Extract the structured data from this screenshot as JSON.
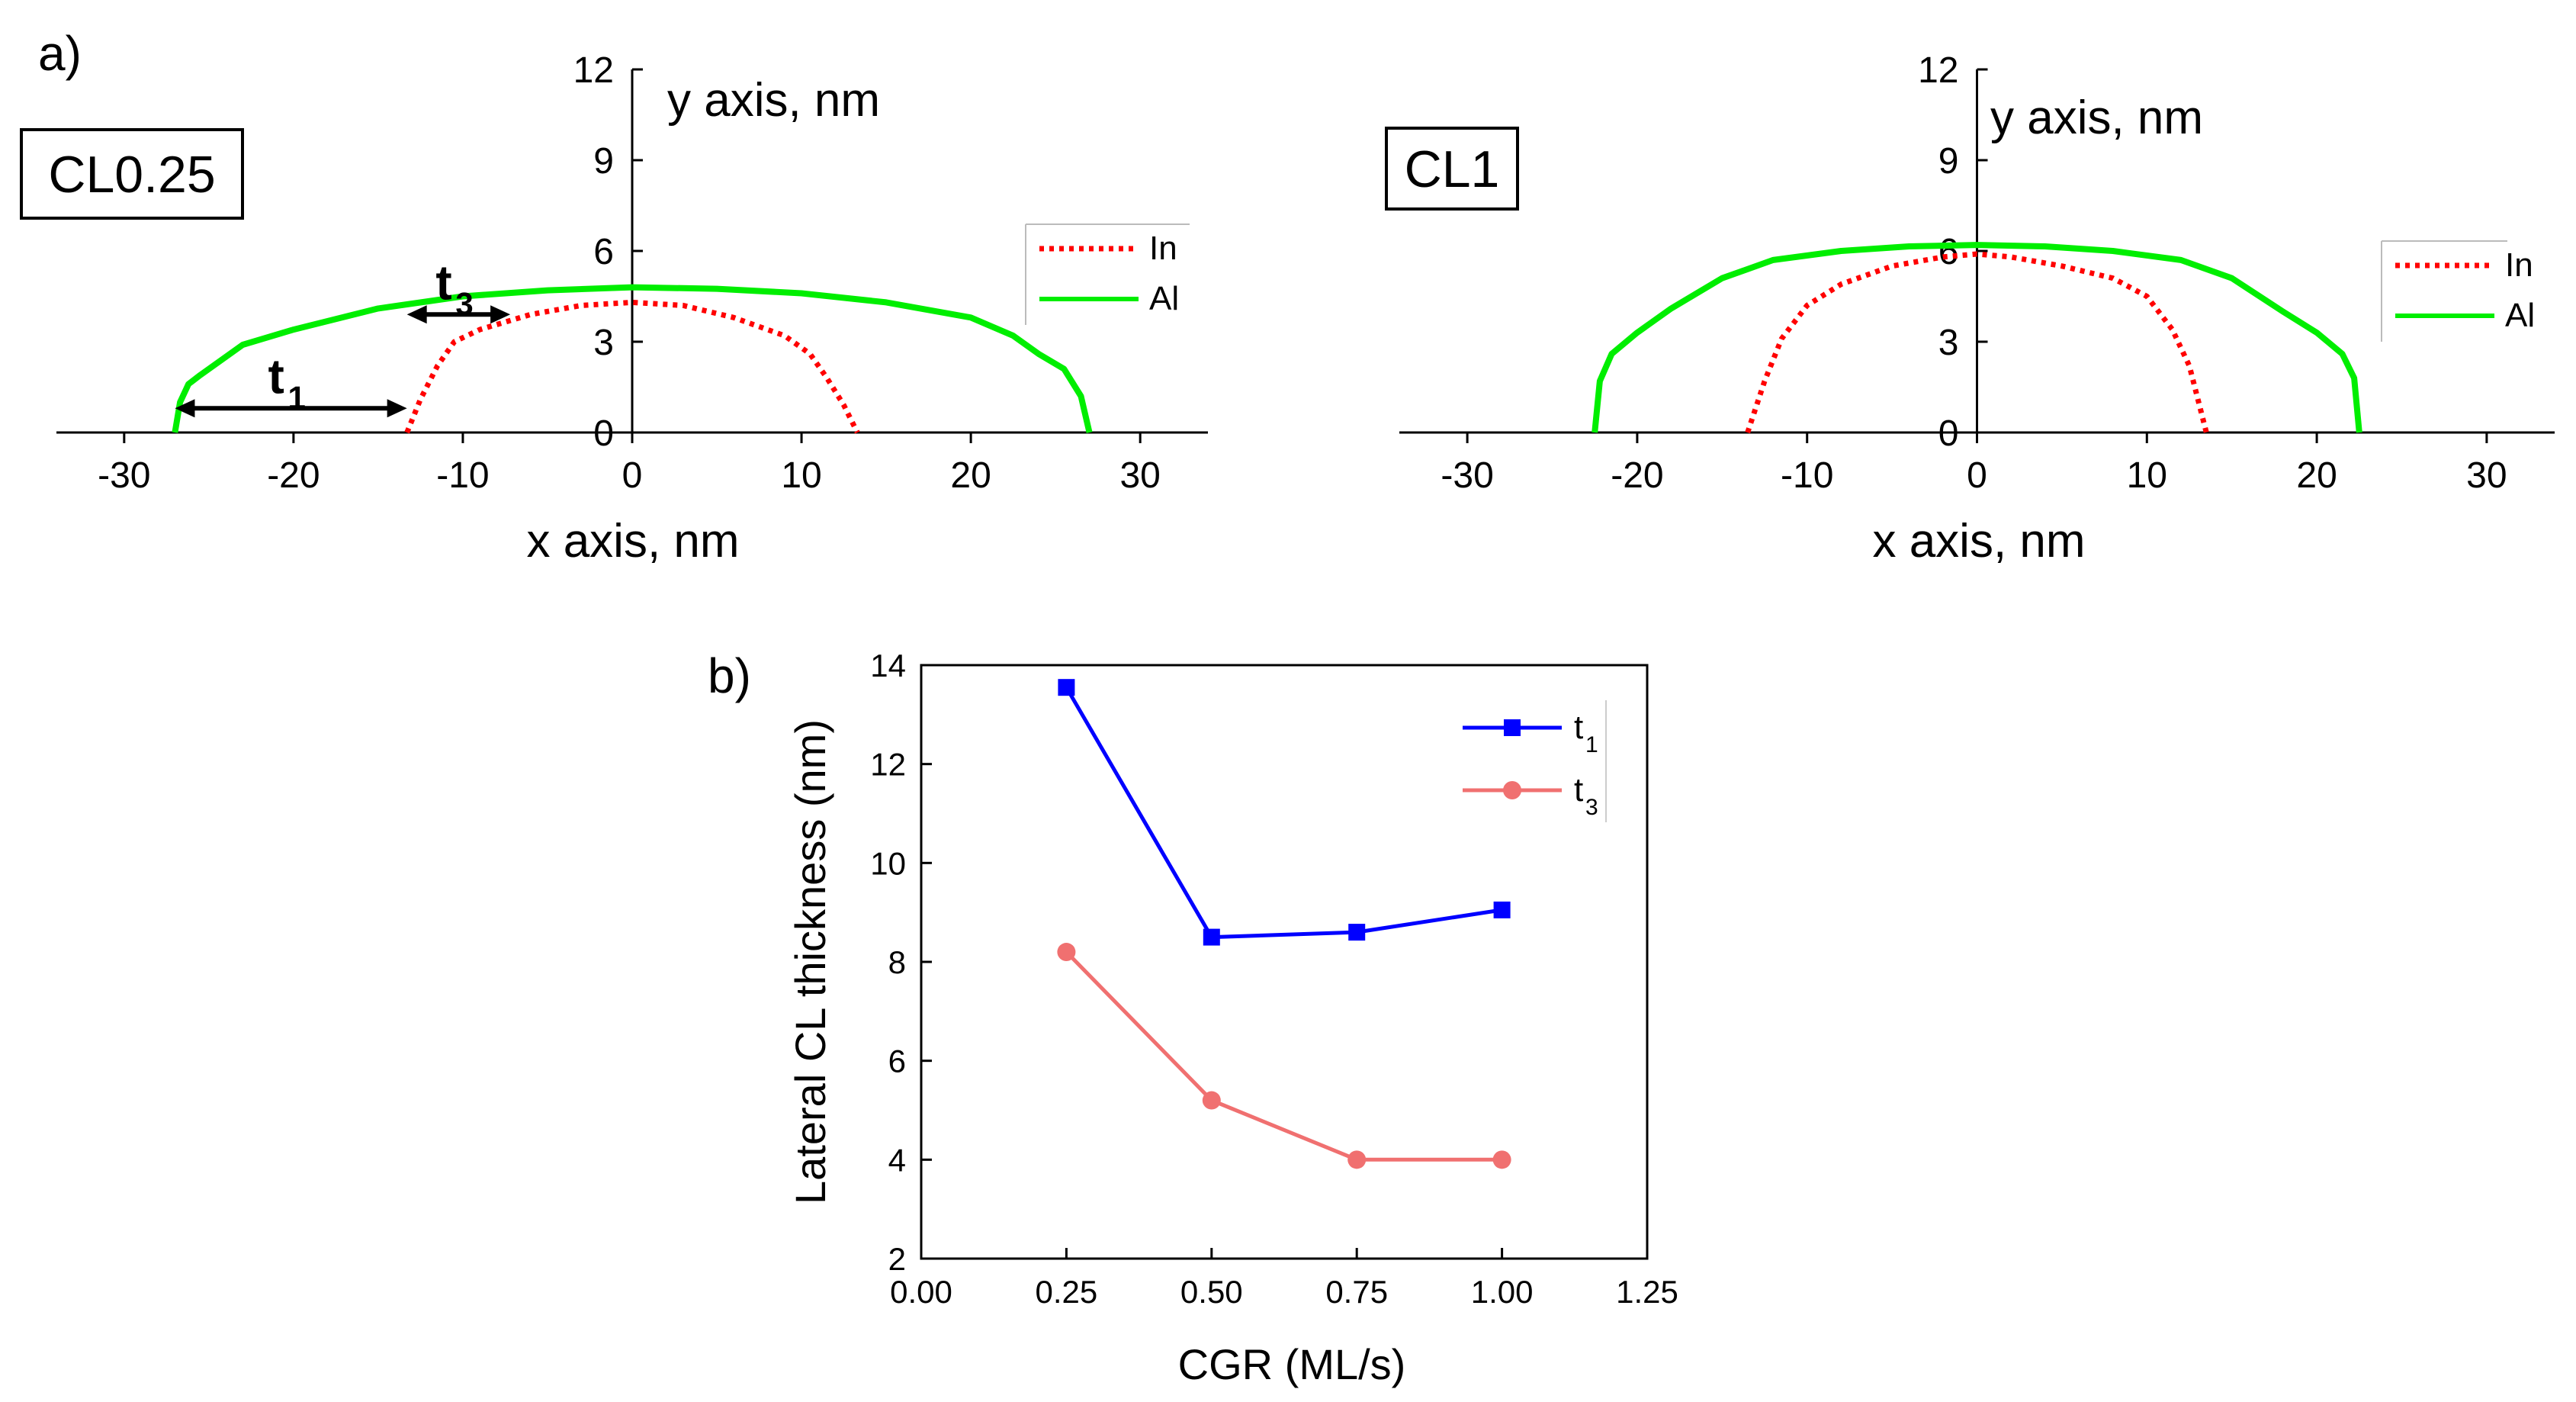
{
  "figure": {
    "panel_a_label": "a)",
    "panel_b_label": "b)"
  },
  "chart_data": [
    {
      "id": "cl025",
      "type": "line",
      "title": "CL0.25",
      "xlabel": "x axis, nm",
      "ylabel": "y axis, nm",
      "xlim": [
        -34,
        34
      ],
      "ylim": [
        0,
        12
      ],
      "xticks": [
        -30,
        -20,
        -10,
        0,
        10,
        20,
        30
      ],
      "xtick_labels": [
        "-30",
        "-20",
        "-10",
        "0",
        "10",
        "20",
        "30"
      ],
      "yticks": [
        0,
        3,
        6,
        9,
        12
      ],
      "ytick_labels": [
        "0",
        "3",
        "6",
        "9",
        "12"
      ],
      "legend_position": "right",
      "series": [
        {
          "name": "In",
          "color": "#ff0000",
          "style": "dotted",
          "x": [
            -13.3,
            -12.5,
            -11.5,
            -10.5,
            -9,
            -6,
            -3,
            0,
            3,
            6,
            9,
            10.5,
            11.5,
            12.5,
            13.3
          ],
          "y": [
            0,
            1.1,
            2.2,
            3.0,
            3.4,
            3.9,
            4.2,
            4.3,
            4.2,
            3.8,
            3.2,
            2.6,
            1.8,
            0.9,
            0
          ]
        },
        {
          "name": "Al",
          "color": "#00ee00",
          "style": "solid",
          "x": [
            -27,
            -26.7,
            -26.2,
            -25.5,
            -23,
            -20,
            -15,
            -10,
            -5,
            0,
            5,
            10,
            15,
            20,
            22.5,
            24,
            25.5,
            26.5,
            27
          ],
          "y": [
            0,
            1.0,
            1.6,
            1.9,
            2.9,
            3.4,
            4.1,
            4.5,
            4.7,
            4.8,
            4.75,
            4.6,
            4.3,
            3.8,
            3.2,
            2.6,
            2.1,
            1.2,
            0
          ]
        }
      ],
      "annotations": [
        {
          "label": "t",
          "subscript": "1",
          "x_start": -27,
          "x_end": -13.3,
          "y": 0.8
        },
        {
          "label": "t",
          "subscript": "3",
          "x_start": -13.3,
          "x_end": -7.2,
          "y": 3.9
        }
      ]
    },
    {
      "id": "cl1",
      "type": "line",
      "title": "CL1",
      "xlabel": "x axis, nm",
      "ylabel": "y axis, nm",
      "xlim": [
        -34,
        34
      ],
      "ylim": [
        0,
        12
      ],
      "xticks": [
        -30,
        -20,
        -10,
        0,
        10,
        20,
        30
      ],
      "xtick_labels": [
        "-30",
        "-20",
        "-10",
        "0",
        "10",
        "20",
        "30"
      ],
      "yticks": [
        0,
        3,
        6,
        9,
        12
      ],
      "ytick_labels": [
        "0",
        "3",
        "6",
        "9",
        "12"
      ],
      "legend_position": "right",
      "series": [
        {
          "name": "In",
          "color": "#ff0000",
          "style": "dotted",
          "x": [
            -13.5,
            -12.5,
            -11.5,
            -10,
            -8,
            -5,
            -2,
            0,
            2,
            5,
            8,
            10,
            11.5,
            12.5,
            13.5
          ],
          "y": [
            0,
            1.7,
            3.1,
            4.2,
            4.9,
            5.5,
            5.8,
            5.9,
            5.8,
            5.5,
            5.1,
            4.5,
            3.4,
            2.2,
            0
          ]
        },
        {
          "name": "Al",
          "color": "#00ee00",
          "style": "solid",
          "x": [
            -22.5,
            -22.2,
            -21.5,
            -20,
            -18,
            -15,
            -12,
            -8,
            -4,
            0,
            4,
            8,
            12,
            15,
            18,
            20,
            21.5,
            22.2,
            22.5
          ],
          "y": [
            0,
            1.7,
            2.6,
            3.3,
            4.1,
            5.1,
            5.7,
            6.0,
            6.15,
            6.2,
            6.15,
            6.0,
            5.7,
            5.1,
            4.0,
            3.3,
            2.6,
            1.8,
            0
          ]
        }
      ]
    },
    {
      "id": "cgr",
      "type": "line",
      "title": "",
      "xlabel": "CGR (ML/s)",
      "ylabel": "Lateral CL thickness (nm)",
      "xlim": [
        0,
        1.25
      ],
      "ylim": [
        2,
        14
      ],
      "xticks": [
        0,
        0.25,
        0.5,
        0.75,
        1.0,
        1.25
      ],
      "xtick_labels": [
        "0.00",
        "0.25",
        "0.50",
        "0.75",
        "1.00",
        "1.25"
      ],
      "yticks": [
        2,
        4,
        6,
        8,
        10,
        12,
        14
      ],
      "ytick_labels": [
        "2",
        "4",
        "6",
        "8",
        "10",
        "12",
        "14"
      ],
      "legend_position": "top-right",
      "categories": [
        0.25,
        0.5,
        0.75,
        1.0
      ],
      "series": [
        {
          "name": "t",
          "subscript": "1",
          "color": "#0000ff",
          "marker": "square",
          "values": [
            13.55,
            8.5,
            8.6,
            9.05
          ]
        },
        {
          "name": "t",
          "subscript": "3",
          "color": "#f07070",
          "marker": "circle",
          "values": [
            8.2,
            5.2,
            4.0,
            4.0
          ]
        }
      ]
    }
  ]
}
